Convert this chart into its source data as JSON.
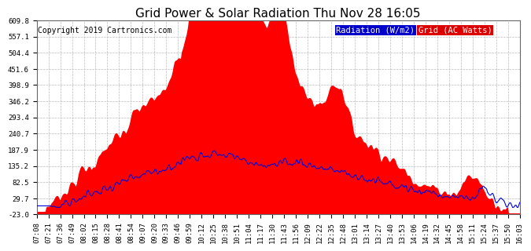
{
  "title": "Grid Power & Solar Radiation Thu Nov 28 16:05",
  "copyright": "Copyright 2019 Cartronics.com",
  "legend_radiation": "Radiation (W/m2)",
  "legend_grid": "Grid (AC Watts)",
  "background_color": "#ffffff",
  "plot_background": "#ffffff",
  "grid_color": "#bbbbbb",
  "red_fill_color": "#ff0000",
  "blue_line_color": "#0000dd",
  "legend_radiation_bg": "#0000cc",
  "legend_grid_bg": "#dd0000",
  "yticks": [
    -23.0,
    29.7,
    82.5,
    135.2,
    187.9,
    240.7,
    293.4,
    346.2,
    398.9,
    451.6,
    504.4,
    557.1,
    609.8
  ],
  "ymin": -23.0,
  "ymax": 609.8,
  "xtick_labels": [
    "07:08",
    "07:21",
    "07:36",
    "07:49",
    "08:02",
    "08:15",
    "08:28",
    "08:41",
    "08:54",
    "09:07",
    "09:20",
    "09:33",
    "09:46",
    "09:59",
    "10:12",
    "10:25",
    "10:38",
    "10:51",
    "11:04",
    "11:17",
    "11:30",
    "11:43",
    "11:56",
    "12:09",
    "12:22",
    "12:35",
    "12:48",
    "13:01",
    "13:14",
    "13:27",
    "13:40",
    "13:53",
    "14:06",
    "14:19",
    "14:32",
    "14:45",
    "14:58",
    "15:11",
    "15:24",
    "15:37",
    "15:50",
    "16:03"
  ],
  "title_fontsize": 11,
  "copyright_fontsize": 7,
  "tick_fontsize": 6.5,
  "legend_fontsize": 7.5
}
